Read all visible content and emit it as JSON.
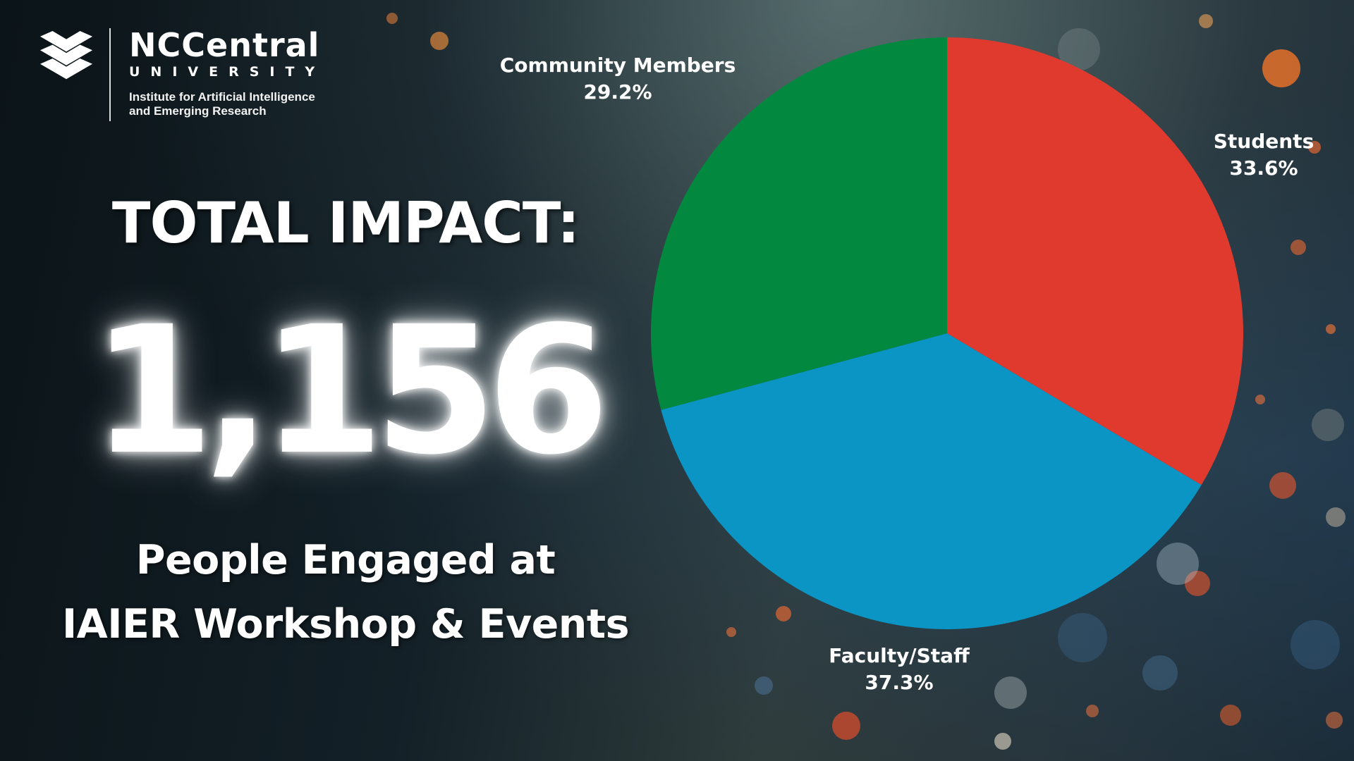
{
  "logo": {
    "name": "NCCentral",
    "university": "UNIVERSITY",
    "institute_line1": "Institute for Artificial Intelligence",
    "institute_line2": "and Emerging Research"
  },
  "headline": "TOTAL IMPACT:",
  "total": "1,156",
  "subline": {
    "line1": "People Engaged at",
    "line2": "IAIER Workshop & Events"
  },
  "chart_data": {
    "type": "pie",
    "title": "",
    "slices": [
      {
        "label": "Students",
        "value": 33.6,
        "display": "33.6%",
        "color": "#e03a2f"
      },
      {
        "label": "Faculty/Staff",
        "value": 37.3,
        "display": "37.3%",
        "color": "#0a95c4"
      },
      {
        "label": "Community Members",
        "value": 29.2,
        "display": "29.2%",
        "color": "#03893f"
      }
    ],
    "start_angle": "12 o'clock",
    "direction": "clockwise",
    "labels": "outside each slice"
  }
}
